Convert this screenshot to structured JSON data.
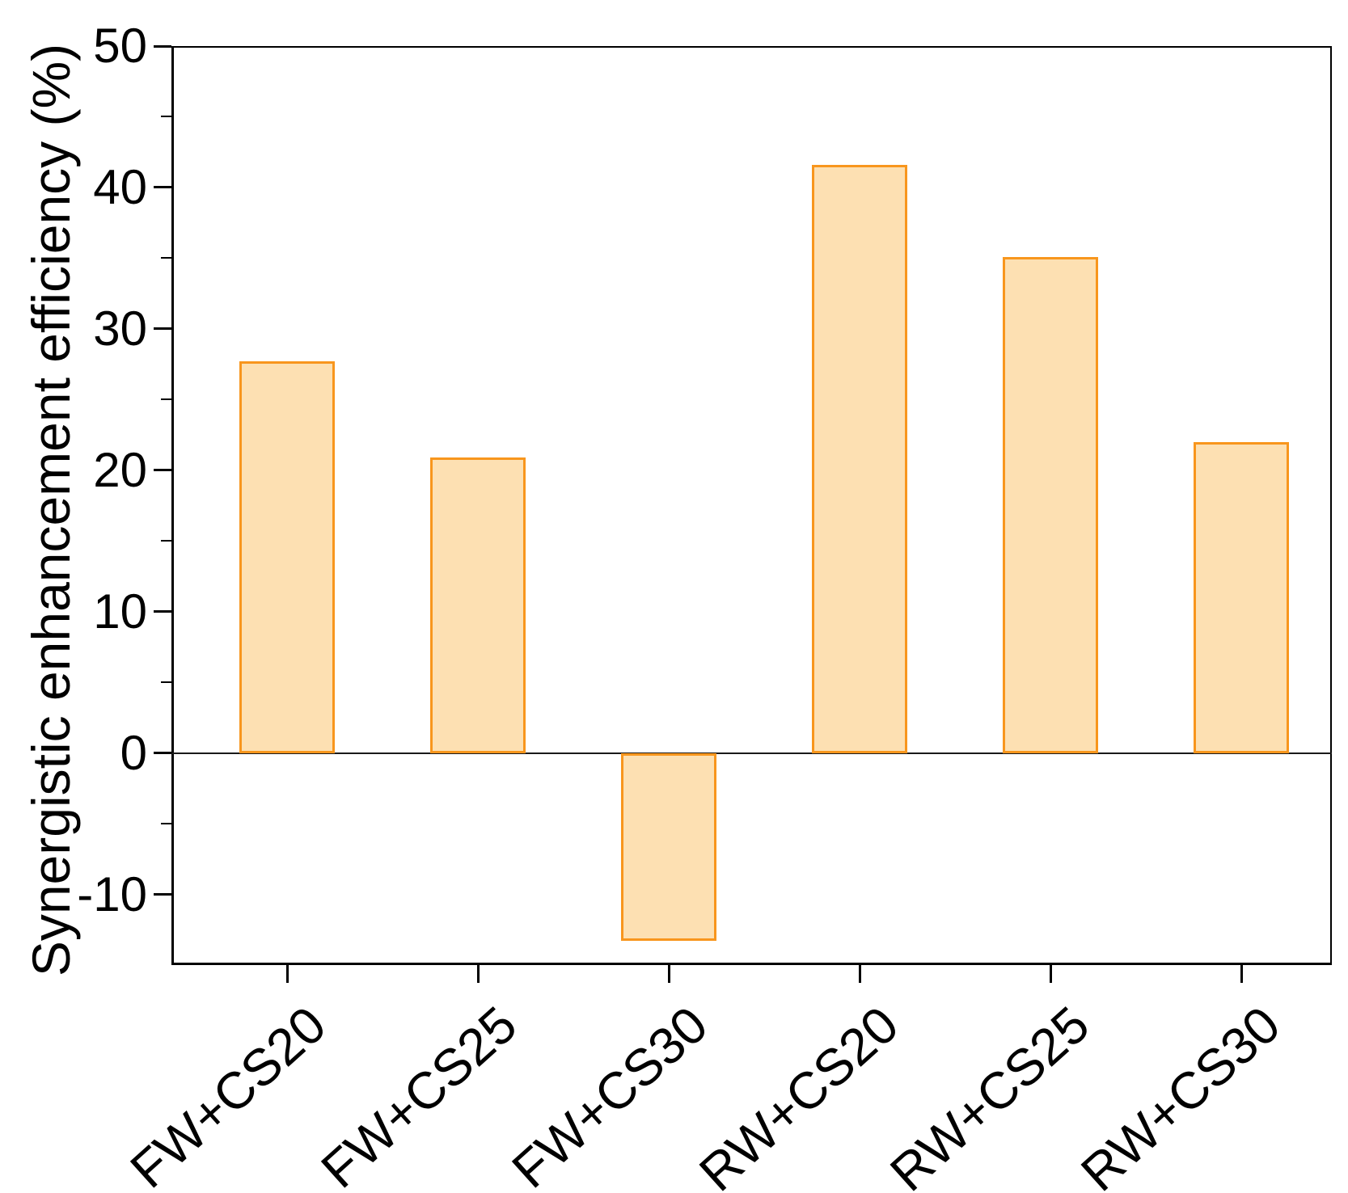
{
  "chart_data": {
    "type": "bar",
    "title": "",
    "categories": [
      "FW+CS20",
      "FW+CS25",
      "FW+CS30",
      "RW+CS20",
      "RW+CS25",
      "RW+CS30"
    ],
    "values": [
      27.7,
      20.9,
      -13.3,
      41.6,
      35.1,
      22.0
    ],
    "xlabel": "",
    "ylabel": "Synergistic enhancement efficiency (%)",
    "ylim": [
      -15,
      50
    ],
    "yticks": [
      50,
      40,
      30,
      20,
      10,
      0,
      -10
    ],
    "minor_yticks": [
      45,
      35,
      25,
      15,
      5,
      -5
    ],
    "grid": "off",
    "legend": "none",
    "bar_fill_color": "#FDE0B2",
    "bar_border_color": "#F8961D",
    "axis_color": "#000000",
    "zero_line": true
  }
}
